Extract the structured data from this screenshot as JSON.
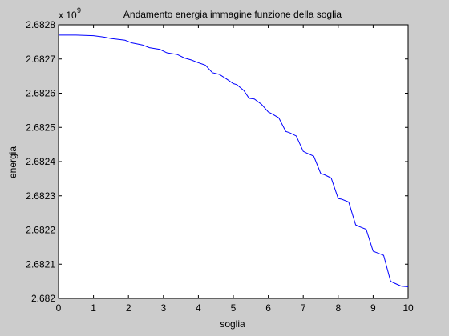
{
  "chart_data": {
    "type": "line",
    "title": "Andamento energia immagine funzione della soglia",
    "xlabel": "soglia",
    "ylabel": "energia",
    "y_multiplier": "x 10",
    "y_multiplier_exponent": "9",
    "xlim": [
      0,
      10
    ],
    "ylim": [
      2.682,
      2.6828
    ],
    "x_ticks": [
      0,
      1,
      2,
      3,
      4,
      5,
      6,
      7,
      8,
      9,
      10
    ],
    "y_ticks": [
      2.682,
      2.6821,
      2.6822,
      2.6823,
      2.6824,
      2.6825,
      2.6826,
      2.6827,
      2.6828
    ],
    "x_tick_labels": [
      "0",
      "1",
      "2",
      "3",
      "4",
      "5",
      "6",
      "7",
      "8",
      "9",
      "10"
    ],
    "y_tick_labels": [
      "2.682",
      "2.6821",
      "2.6822",
      "2.6823",
      "2.6824",
      "2.6825",
      "2.6826",
      "2.6827",
      "2.6828"
    ],
    "grid": false,
    "legend": "none",
    "line_color": "#0000ff",
    "series": [
      {
        "x": [
          0.0,
          0.5,
          1.0,
          1.3,
          1.5,
          1.9,
          2.1,
          2.4,
          2.6,
          2.9,
          3.1,
          3.4,
          3.6,
          3.8,
          4.0,
          4.2,
          4.4,
          4.6,
          4.8,
          5.0,
          5.1,
          5.3,
          5.45,
          5.6,
          5.8,
          6.0,
          6.1,
          6.3,
          6.5,
          6.6,
          6.8,
          7.0,
          7.1,
          7.3,
          7.5,
          7.6,
          7.8,
          8.0,
          8.1,
          8.3,
          8.5,
          8.6,
          8.8,
          9.0,
          9.1,
          9.3,
          9.5,
          9.6,
          9.8,
          10.0
        ],
        "y": [
          2.68277,
          2.68277,
          2.682768,
          2.682764,
          2.68276,
          2.682755,
          2.682747,
          2.682741,
          2.682733,
          2.682728,
          2.682718,
          2.682713,
          2.682703,
          2.682697,
          2.682689,
          2.682682,
          2.68266,
          2.682655,
          2.682642,
          2.682628,
          2.682625,
          2.682608,
          2.682585,
          2.682583,
          2.682568,
          2.682545,
          2.68254,
          2.682528,
          2.682488,
          2.682485,
          2.682475,
          2.68243,
          2.682425,
          2.682416,
          2.682365,
          2.682362,
          2.682352,
          2.682292,
          2.68229,
          2.682282,
          2.682215,
          2.68221,
          2.682202,
          2.682138,
          2.682134,
          2.682126,
          2.68205,
          2.682045,
          2.682036,
          2.682034
        ]
      }
    ]
  }
}
